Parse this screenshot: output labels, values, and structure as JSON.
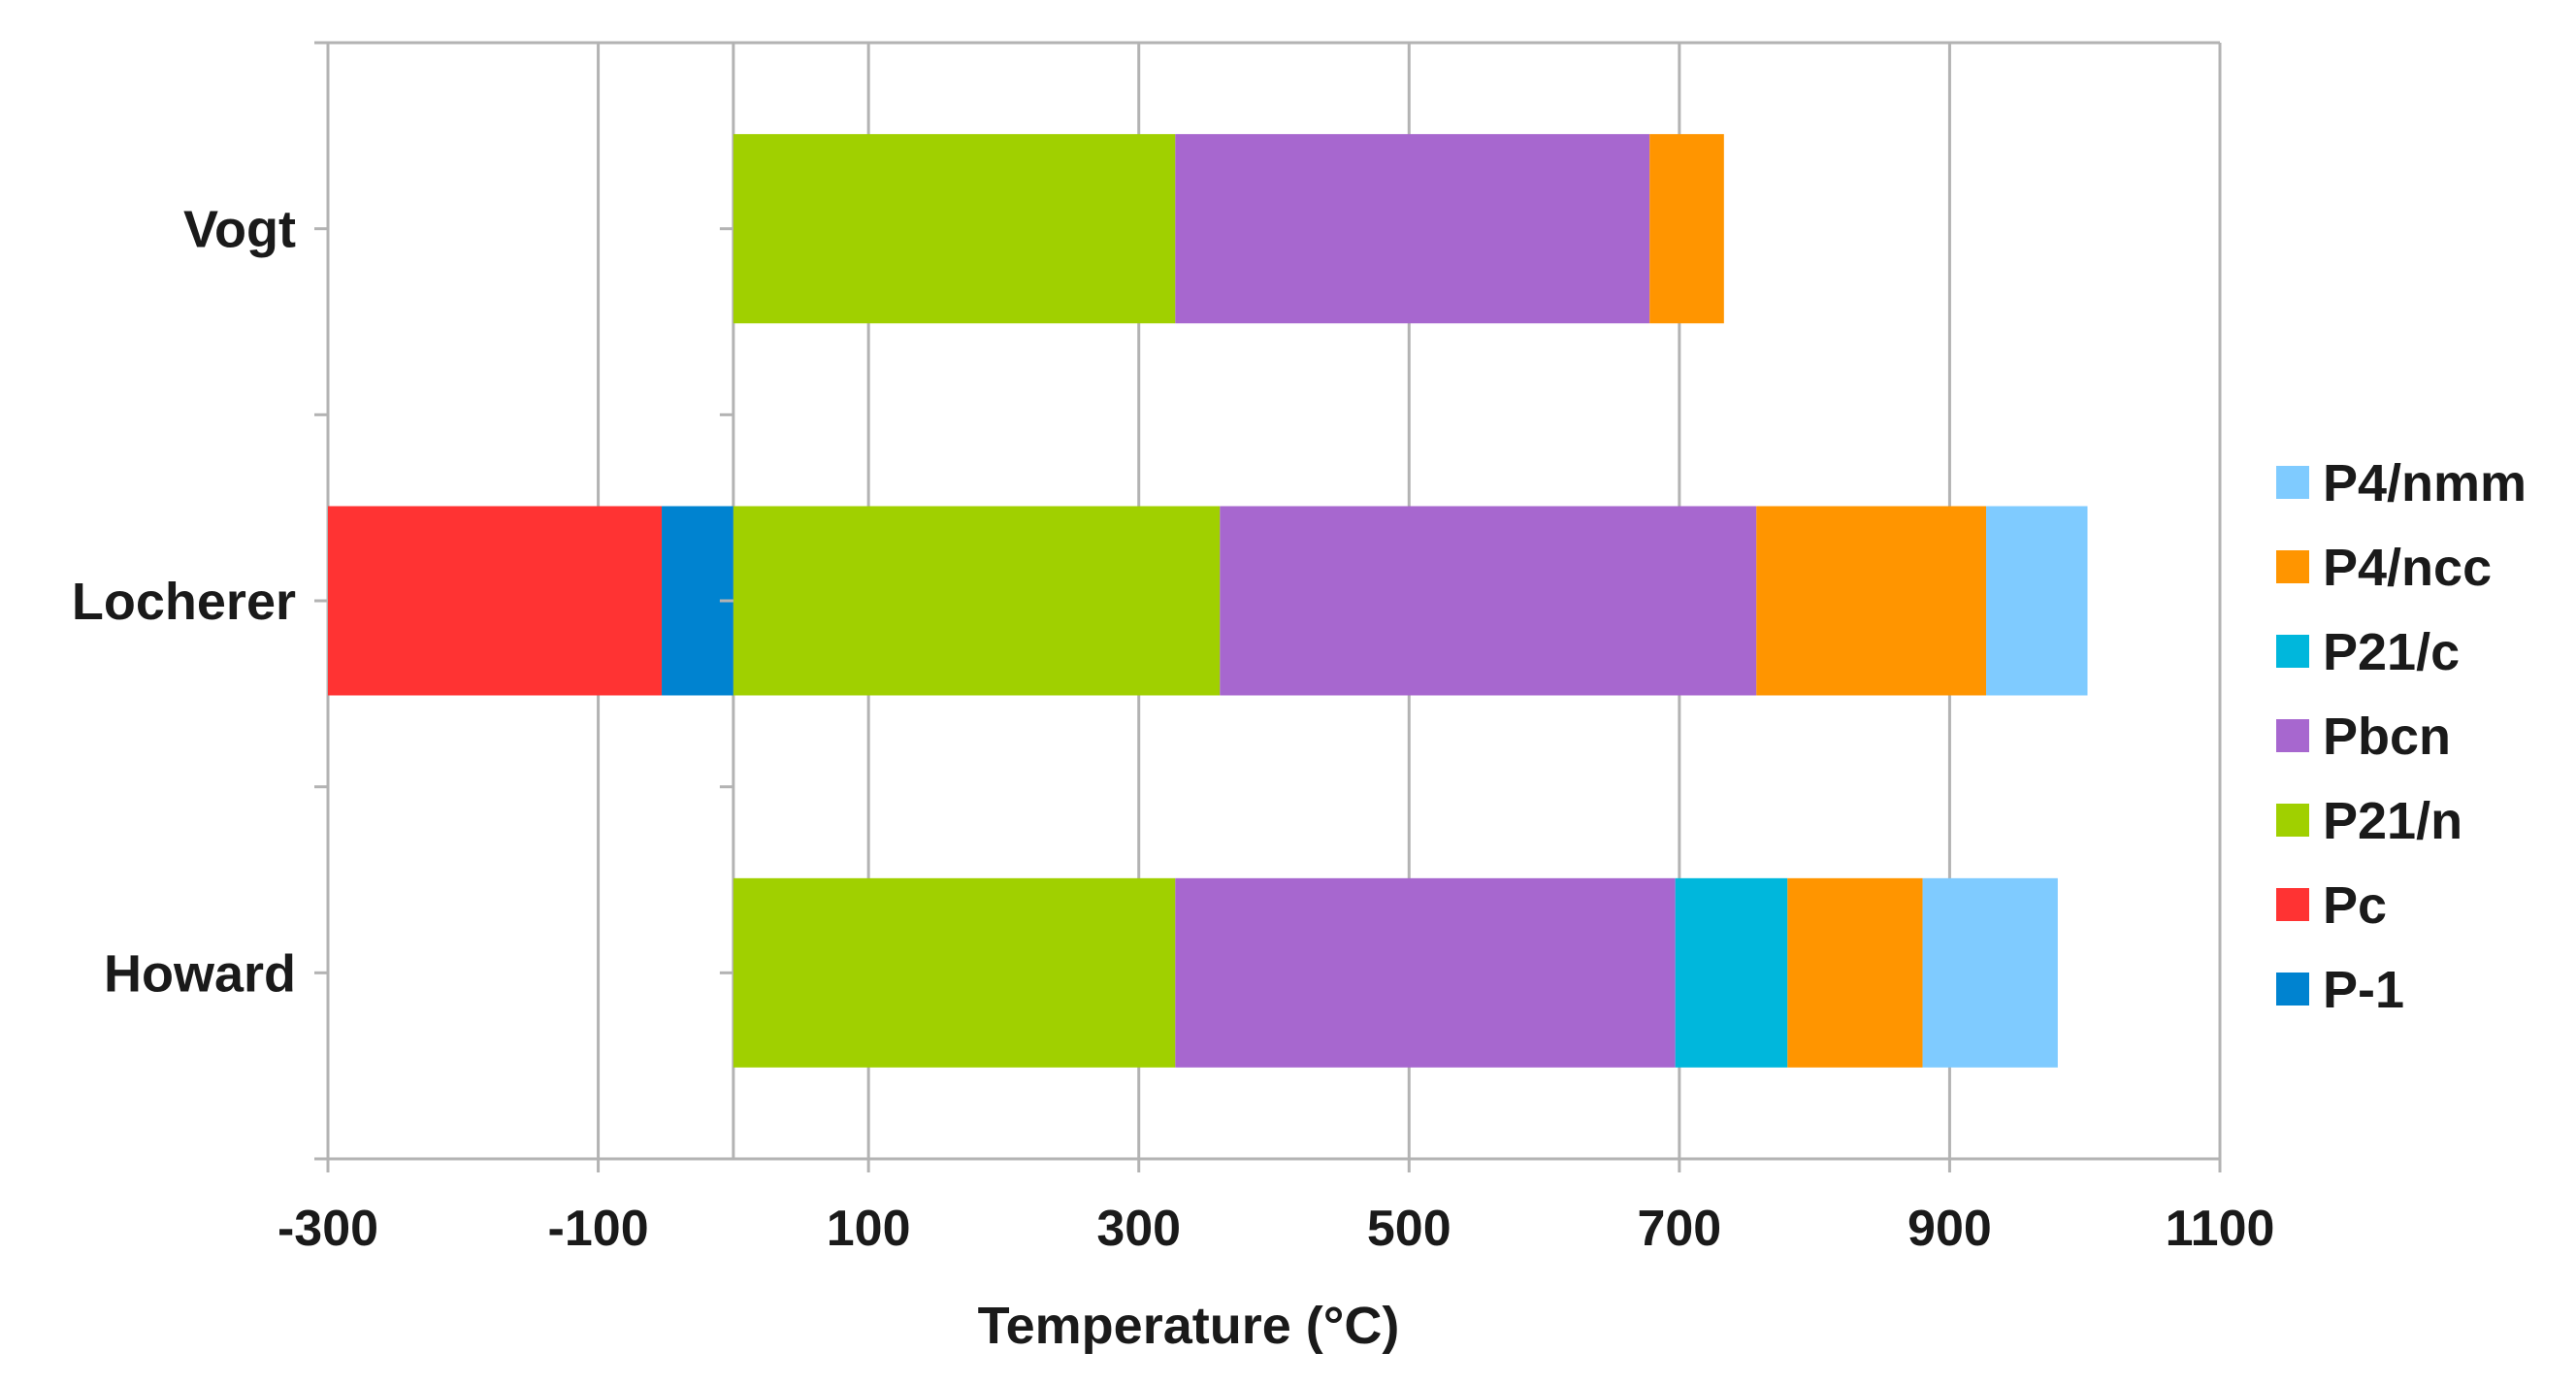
{
  "chart_data": {
    "type": "bar",
    "orientation": "horizontal",
    "stacked": true,
    "categories": [
      "Howard",
      "Locherer",
      "Vogt"
    ],
    "xlabel": "Temperature (°C)",
    "xlim": [
      -300,
      1100
    ],
    "xticks": [
      -300,
      -100,
      100,
      300,
      500,
      700,
      900,
      1100
    ],
    "xtick_labels": [
      "-300",
      "-100",
      "100",
      "300",
      "500",
      "700",
      "900",
      "1100"
    ],
    "grid": true,
    "legend_position": "right",
    "legend_order": [
      "P4/nmm",
      "P4/ncc",
      "P21/c",
      "Pbcn",
      "P21/n",
      "Pc",
      "P-1"
    ],
    "series": [
      {
        "name": "P4/nmm",
        "color": "#7fcbff"
      },
      {
        "name": "P4/ncc",
        "color": "#ff9500"
      },
      {
        "name": "P21/c",
        "color": "#00b7dc"
      },
      {
        "name": "Pbcn",
        "color": "#a767cf"
      },
      {
        "name": "P21/n",
        "color": "#a0d000"
      },
      {
        "name": "Pc",
        "color": "#ff3333"
      },
      {
        "name": "P-1",
        "color": "#0083d0"
      }
    ],
    "bars": [
      {
        "category": "Howard",
        "segments": [
          {
            "series": "P21/n",
            "start": 0,
            "end": 327
          },
          {
            "series": "Pbcn",
            "start": 327,
            "end": 697
          },
          {
            "series": "P21/c",
            "start": 697,
            "end": 780
          },
          {
            "series": "P4/ncc",
            "start": 780,
            "end": 880
          },
          {
            "series": "P4/nmm",
            "start": 880,
            "end": 980
          }
        ]
      },
      {
        "category": "Locherer",
        "segments": [
          {
            "series": "Pc",
            "start": -300,
            "end": -53
          },
          {
            "series": "P-1",
            "start": -53,
            "end": 0
          },
          {
            "series": "P21/n",
            "start": 0,
            "end": 360
          },
          {
            "series": "Pbcn",
            "start": 360,
            "end": 757
          },
          {
            "series": "P4/ncc",
            "start": 757,
            "end": 927
          },
          {
            "series": "P4/nmm",
            "start": 927,
            "end": 1002
          }
        ]
      },
      {
        "category": "Vogt",
        "segments": [
          {
            "series": "P21/n",
            "start": 0,
            "end": 327
          },
          {
            "series": "Pbcn",
            "start": 327,
            "end": 678
          },
          {
            "series": "P4/ncc",
            "start": 678,
            "end": 733
          }
        ]
      }
    ]
  }
}
